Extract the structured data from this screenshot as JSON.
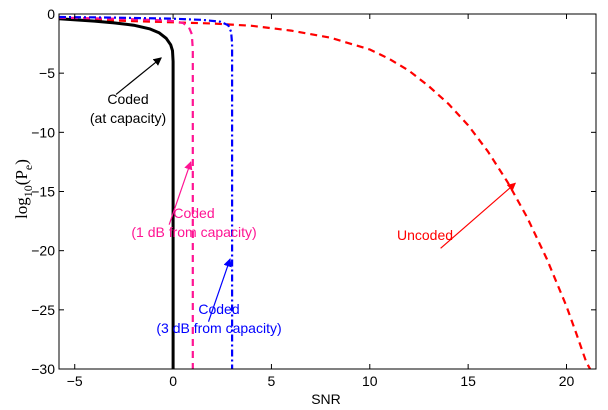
{
  "chart_data": {
    "type": "line",
    "xlabel": "SNR",
    "ylabel": {
      "base": "log",
      "base_sub": "10",
      "open": "(P",
      "pe_sub": "e",
      "close": ")"
    },
    "xlim": [
      -5.8,
      21.5
    ],
    "ylim": [
      -30,
      0
    ],
    "xticks": [
      -5,
      0,
      5,
      10,
      15,
      20
    ],
    "yticks": [
      0,
      -5,
      -10,
      -15,
      -20,
      -25,
      -30
    ],
    "grid": false,
    "legend": "none",
    "series": [
      {
        "key": "uncoded",
        "color": "#ff0000",
        "dash": "dashed",
        "points": [
          [
            -5.8,
            -0.4
          ],
          [
            -4,
            -0.5
          ],
          [
            -2,
            -0.6
          ],
          [
            0,
            -0.7
          ],
          [
            2,
            -0.8
          ],
          [
            4,
            -1.0
          ],
          [
            6,
            -1.4
          ],
          [
            8,
            -2.0
          ],
          [
            10,
            -3.0
          ],
          [
            11,
            -3.8
          ],
          [
            12,
            -4.8
          ],
          [
            13,
            -6.1
          ],
          [
            14,
            -7.6
          ],
          [
            15,
            -9.4
          ],
          [
            16,
            -11.6
          ],
          [
            17,
            -14.2
          ],
          [
            18,
            -17.2
          ],
          [
            19,
            -20.7
          ],
          [
            20,
            -24.7
          ],
          [
            20.5,
            -27.0
          ],
          [
            21,
            -29.4
          ],
          [
            21.2,
            -30
          ]
        ]
      },
      {
        "key": "coded_capacity",
        "color": "#000000",
        "dash": "solid",
        "points": [
          [
            -5.8,
            -0.4
          ],
          [
            -4,
            -0.6
          ],
          [
            -3,
            -0.75
          ],
          [
            -2,
            -0.95
          ],
          [
            -1.2,
            -1.25
          ],
          [
            -0.7,
            -1.6
          ],
          [
            -0.35,
            -2.05
          ],
          [
            -0.12,
            -2.6
          ],
          [
            -0.03,
            -3.1
          ],
          [
            0,
            -4
          ],
          [
            0,
            -30
          ]
        ]
      },
      {
        "key": "coded_1db",
        "color": "#ff1493",
        "dash": "dashed",
        "points": [
          [
            -5.8,
            -0.3
          ],
          [
            -3,
            -0.4
          ],
          [
            -1,
            -0.5
          ],
          [
            0,
            -0.6
          ],
          [
            0.5,
            -0.75
          ],
          [
            0.8,
            -1.1
          ],
          [
            0.95,
            -1.7
          ],
          [
            1,
            -3
          ],
          [
            1,
            -30
          ]
        ]
      },
      {
        "key": "coded_3db",
        "color": "#0000ff",
        "dash": "dashdot",
        "points": [
          [
            -5.8,
            -0.25
          ],
          [
            -3,
            -0.3
          ],
          [
            0,
            -0.4
          ],
          [
            1.5,
            -0.5
          ],
          [
            2.4,
            -0.65
          ],
          [
            2.8,
            -0.95
          ],
          [
            2.95,
            -1.5
          ],
          [
            3,
            -2.5
          ],
          [
            3,
            -30
          ]
        ]
      }
    ],
    "annotations": [
      {
        "key": "ann_capacity",
        "lines": [
          "Coded",
          "(at capacity)"
        ],
        "color": "#000000",
        "arrow_from": [
          -2.9,
          -6.8
        ],
        "arrow_to": [
          -0.6,
          -3.7
        ]
      },
      {
        "key": "ann_1db",
        "lines": [
          "Coded",
          "(1 dB from capacity)"
        ],
        "color": "#ff1493",
        "arrow_from": [
          -0.2,
          -17.8
        ],
        "arrow_to": [
          0.9,
          -12.5
        ]
      },
      {
        "key": "ann_3db",
        "lines": [
          "Coded",
          "(3 dB from capacity)"
        ],
        "color": "#0000ff",
        "arrow_from": [
          1.8,
          -26.0
        ],
        "arrow_to": [
          2.9,
          -20.7
        ]
      },
      {
        "key": "ann_uncoded",
        "lines": [
          "Uncoded"
        ],
        "color": "#ff0000",
        "arrow_from": [
          13.6,
          -19.8
        ],
        "arrow_to": [
          17.4,
          -14.3
        ]
      }
    ]
  }
}
